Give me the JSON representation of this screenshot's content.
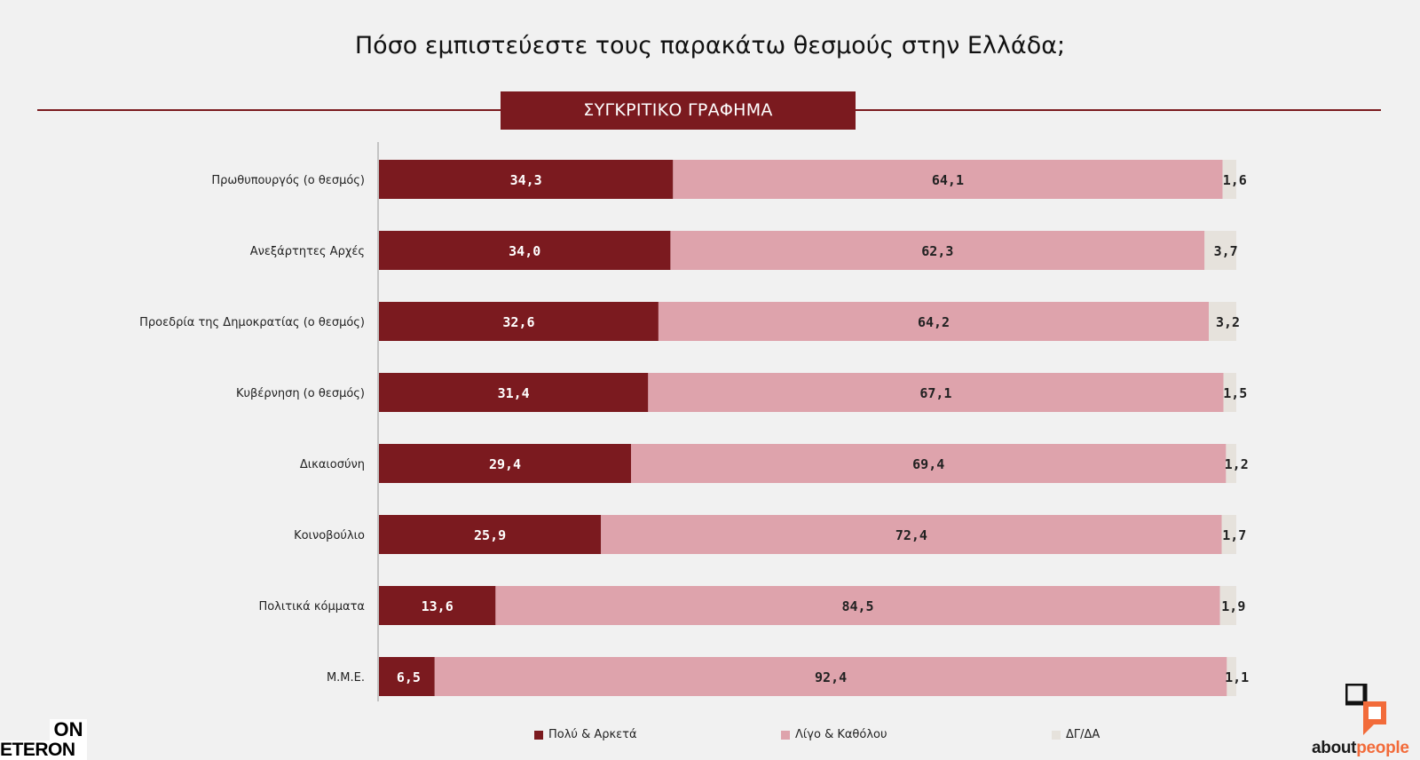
{
  "title": "Πόσο εμπιστεύεστε τους παρακάτω θεσμούς στην Ελλάδα;",
  "banner": "ΣΥΓΚΡΙΤΙΚΟ ΓΡΑΦΗΜΑ",
  "colors": {
    "series1": "#7b1a1f",
    "series2": "#dea3ac",
    "series3": "#e6e2dc",
    "accent": "#7b1a1f"
  },
  "chart_data": {
    "type": "bar",
    "orientation": "horizontal",
    "stacked": true,
    "categories": [
      "Πρωθυπουργός (ο θεσμός)",
      "Ανεξάρτητες Αρχές",
      "Προεδρία της Δημοκρατίας (ο θεσμός)",
      "Κυβέρνηση (ο θεσμός)",
      "Δικαιοσύνη",
      "Κοινοβούλιο",
      "Πολιτικά κόμματα",
      "Μ.Μ.Ε."
    ],
    "series": [
      {
        "name": "Πολύ & Αρκετά",
        "values": [
          34.3,
          34.0,
          32.6,
          31.4,
          29.4,
          25.9,
          13.6,
          6.5
        ],
        "labels": [
          "34,3",
          "34,0",
          "32,6",
          "31,4",
          "29,4",
          "25,9",
          "13,6",
          "6,5"
        ]
      },
      {
        "name": "Λίγο & Καθόλου",
        "values": [
          64.1,
          62.3,
          64.2,
          67.1,
          69.4,
          72.4,
          84.5,
          92.4
        ],
        "labels": [
          "64,1",
          "62,3",
          "64,2",
          "67,1",
          "69,4",
          "72,4",
          "84,5",
          "92,4"
        ]
      },
      {
        "name": "ΔΓ/ΔΑ",
        "values": [
          1.6,
          3.7,
          3.2,
          1.5,
          1.2,
          1.7,
          1.9,
          1.1
        ],
        "labels": [
          "1,6",
          "3,7",
          "3,2",
          "1,5",
          "1,2",
          "1,7",
          "1,9",
          "1,1"
        ]
      }
    ],
    "xlim": [
      0,
      100
    ],
    "grid": false,
    "legend_position": "bottom"
  },
  "logos": {
    "left_top": "ON",
    "left_bottom": "ETERON",
    "right_part1": "about",
    "right_part2": "people"
  }
}
